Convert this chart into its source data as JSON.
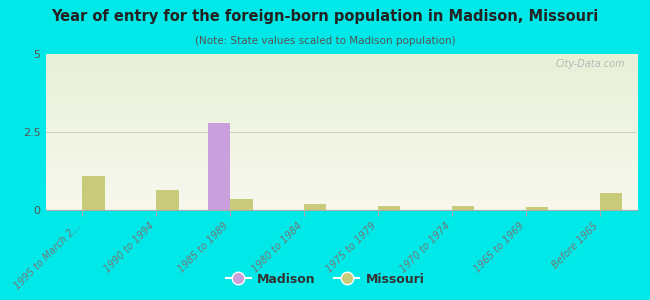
{
  "title": "Year of entry for the foreign-born population in Madison, Missouri",
  "subtitle": "(Note: State values scaled to Madison population)",
  "categories": [
    "1995 to March 2...",
    "1990 to 1994",
    "1985 to 1989",
    "1980 to 1984",
    "1975 to 1979",
    "1970 to 1974",
    "1965 to 1969",
    "Before 1965"
  ],
  "madison_values": [
    0,
    0,
    2.8,
    0,
    0,
    0,
    0,
    0
  ],
  "missouri_values": [
    1.1,
    0.65,
    0.35,
    0.18,
    0.14,
    0.14,
    0.1,
    0.55
  ],
  "madison_color": "#c9a0dc",
  "missouri_color": "#c8cc7a",
  "background_color": "#00e8e8",
  "ylim": [
    0,
    5
  ],
  "yticks": [
    0,
    2.5,
    5
  ],
  "bar_width": 0.3,
  "watermark": "City-Data.com",
  "legend_madison": "Madison",
  "legend_missouri": "Missouri"
}
